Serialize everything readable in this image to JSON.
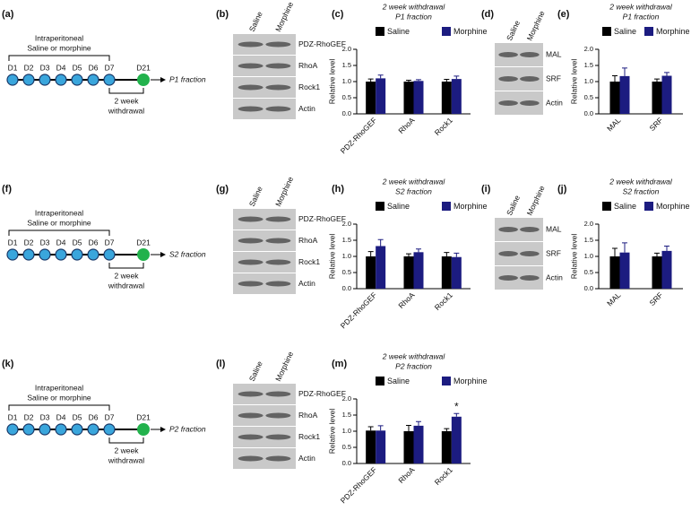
{
  "timelines": [
    {
      "label": "(a)",
      "bracket": "Intraperitoneal",
      "bracket2": "Saline or morphine",
      "days": [
        "D1",
        "D2",
        "D3",
        "D4",
        "D5",
        "D6",
        "D7"
      ],
      "end_day": "D21",
      "fraction": "P1 fraction",
      "withdrawal": [
        "2 week",
        "withdrawal"
      ]
    },
    {
      "label": "(f)",
      "bracket": "Intraperitoneal",
      "bracket2": "Saline or morphine",
      "days": [
        "D1",
        "D2",
        "D3",
        "D4",
        "D5",
        "D6",
        "D7"
      ],
      "end_day": "D21",
      "fraction": "S2 fraction",
      "withdrawal": [
        "2 week",
        "withdrawal"
      ]
    },
    {
      "label": "(k)",
      "bracket": "Intraperitoneal",
      "bracket2": "Saline or morphine",
      "days": [
        "D1",
        "D2",
        "D3",
        "D4",
        "D5",
        "D6",
        "D7"
      ],
      "end_day": "D21",
      "fraction": "P2 fraction",
      "withdrawal": [
        "2 week",
        "withdrawal"
      ]
    }
  ],
  "blots": [
    {
      "label": "(b)",
      "lanes": [
        "Saline",
        "Morphine"
      ],
      "bands": [
        "PDZ-RhoGEF",
        "RhoA",
        "Rock1",
        "Actin"
      ]
    },
    {
      "label": "(d)",
      "lanes": [
        "Saline",
        "Morphine"
      ],
      "bands": [
        "MAL",
        "SRF",
        "Actin"
      ]
    },
    {
      "label": "(g)",
      "lanes": [
        "Saline",
        "Morphine"
      ],
      "bands": [
        "PDZ-RhoGEF",
        "RhoA",
        "Rock1",
        "Actin"
      ]
    },
    {
      "label": "(i)",
      "lanes": [
        "Saline",
        "Morphine"
      ],
      "bands": [
        "MAL",
        "SRF",
        "Actin"
      ]
    },
    {
      "label": "(l)",
      "lanes": [
        "Saline",
        "Morphine"
      ],
      "bands": [
        "PDZ-RhoGEF",
        "RhoA",
        "Rock1",
        "Actin"
      ]
    }
  ],
  "chart_data": [
    {
      "label": "(c)",
      "type": "bar",
      "title": "2 week withdrawal",
      "subtitle": "P1 fraction",
      "ylabel": "Relative level",
      "categories": [
        "PDZ-RhoGEF",
        "RhoA",
        "Rock1"
      ],
      "series": [
        {
          "name": "Saline",
          "color": "#000000",
          "values": [
            1.0,
            1.0,
            1.0
          ],
          "errors": [
            0.08,
            0.04,
            0.07
          ]
        },
        {
          "name": "Morphine",
          "color": "#1c1c80",
          "values": [
            1.1,
            1.02,
            1.08
          ],
          "errors": [
            0.1,
            0.04,
            0.09
          ]
        }
      ],
      "ylim": [
        0,
        2
      ],
      "yticks": [
        {
          "value": 0,
          "label": "0.0"
        },
        0.5,
        {
          "value": 1,
          "label": "1.0"
        },
        1.5,
        {
          "value": 2,
          "label": "2.0"
        }
      ]
    },
    {
      "label": "(e)",
      "type": "bar",
      "title": "2 week withdrawal",
      "subtitle": "P1 fraction",
      "ylabel": "Relative level",
      "categories": [
        "MAL",
        "SRF"
      ],
      "series": [
        {
          "name": "Saline",
          "color": "#000000",
          "values": [
            1.0,
            1.0
          ],
          "errors": [
            0.18,
            0.08
          ]
        },
        {
          "name": "Morphine",
          "color": "#1c1c80",
          "values": [
            1.17,
            1.18
          ],
          "errors": [
            0.25,
            0.1
          ]
        }
      ],
      "ylim": [
        0,
        2
      ],
      "yticks": [
        {
          "value": 0,
          "label": "0.0"
        },
        0.5,
        {
          "value": 1,
          "label": "1.0"
        },
        1.5,
        {
          "value": 2,
          "label": "2.0"
        }
      ]
    },
    {
      "label": "(h)",
      "type": "bar",
      "title": "2 week withdrawal",
      "subtitle": "S2 fraction",
      "ylabel": "Relative level",
      "categories": [
        "PDZ-RhoGEF",
        "RhoA",
        "Rock1"
      ],
      "series": [
        {
          "name": "Saline",
          "color": "#000000",
          "values": [
            1.0,
            1.0,
            1.0
          ],
          "errors": [
            0.15,
            0.08,
            0.12
          ]
        },
        {
          "name": "Morphine",
          "color": "#1c1c80",
          "values": [
            1.32,
            1.13,
            0.98
          ],
          "errors": [
            0.2,
            0.1,
            0.12
          ]
        }
      ],
      "ylim": [
        0,
        2
      ],
      "yticks": [
        {
          "value": 0,
          "label": "0.0"
        },
        0.5,
        {
          "value": 1,
          "label": "1.0"
        },
        1.5,
        {
          "value": 2,
          "label": "2.0"
        }
      ]
    },
    {
      "label": "(j)",
      "type": "bar",
      "title": "2 week withdrawal",
      "subtitle": "S2 fraction",
      "ylabel": "Relative level",
      "categories": [
        "MAL",
        "SRF"
      ],
      "series": [
        {
          "name": "Saline",
          "color": "#000000",
          "values": [
            1.0,
            1.0
          ],
          "errors": [
            0.25,
            0.1
          ]
        },
        {
          "name": "Morphine",
          "color": "#1c1c80",
          "values": [
            1.12,
            1.17
          ],
          "errors": [
            0.3,
            0.15
          ]
        }
      ],
      "ylim": [
        0,
        2
      ],
      "yticks": [
        {
          "value": 0,
          "label": "0.0"
        },
        0.5,
        {
          "value": 1,
          "label": "1.0"
        },
        1.5,
        {
          "value": 2,
          "label": "2.0"
        }
      ]
    },
    {
      "label": "(m)",
      "type": "bar",
      "title": "2 week withdrawal",
      "subtitle": "P2 fraction",
      "ylabel": "Relative level",
      "categories": [
        "PDZ-RhoGEF",
        "RhoA",
        "Rock1"
      ],
      "series": [
        {
          "name": "Saline",
          "color": "#000000",
          "values": [
            1.02,
            1.0,
            1.0
          ],
          "errors": [
            0.12,
            0.18,
            0.08
          ]
        },
        {
          "name": "Morphine",
          "color": "#1c1c80",
          "values": [
            1.02,
            1.17,
            1.45
          ],
          "errors": [
            0.15,
            0.13,
            0.1
          ]
        }
      ],
      "annotation": "*",
      "ylim": [
        0,
        2
      ],
      "yticks": [
        {
          "value": 0,
          "label": "0.0"
        },
        0.5,
        {
          "value": 1,
          "label": "1.0"
        },
        1.5,
        {
          "value": 2,
          "label": "2.0"
        }
      ]
    }
  ]
}
